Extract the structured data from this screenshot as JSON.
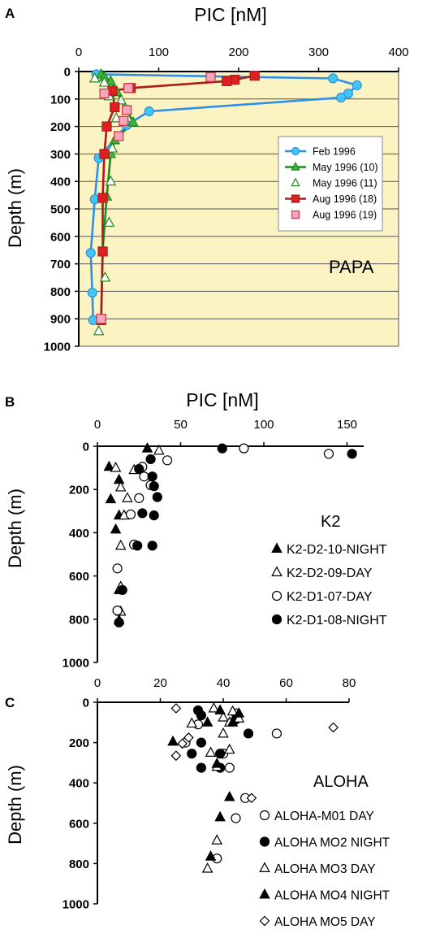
{
  "panels": [
    {
      "letter": "A"
    },
    {
      "letter": "B"
    },
    {
      "letter": "C"
    }
  ],
  "chart_data": [
    {
      "type": "line",
      "panel": "A",
      "xlabel": "PIC [nM]",
      "ylabel": "Depth (m)",
      "xlim": [
        0,
        400
      ],
      "ylim": [
        0,
        1000
      ],
      "y_inverted": true,
      "x_axis_position": "top",
      "x_ticks": [
        0,
        100,
        200,
        300,
        400
      ],
      "y_ticks": [
        0,
        100,
        200,
        300,
        400,
        500,
        600,
        700,
        800,
        900,
        1000
      ],
      "background_color": "#fbf3c2",
      "grid": "horizontal",
      "annotation": "PAPA",
      "legend_position": "right-middle",
      "series": [
        {
          "name": "Feb 1996",
          "marker": "circle",
          "line": true,
          "color": "#2e8fe8",
          "marker_fill": "#42c6f0",
          "points": [
            [
              22,
              10
            ],
            [
              318,
              25
            ],
            [
              348,
              50
            ],
            [
              337,
              80
            ],
            [
              328,
              95
            ],
            [
              88,
              145
            ],
            [
              60,
              195
            ],
            [
              25,
              315
            ],
            [
              20,
              465
            ],
            [
              15,
              660
            ],
            [
              17,
              805
            ],
            [
              18,
              905
            ]
          ]
        },
        {
          "name": "May 1996 (10)",
          "marker": "triangle",
          "line": true,
          "color": "#1e8a1e",
          "marker_fill": "#3fb53f",
          "points": [
            [
              28,
              10
            ],
            [
              32,
              20
            ],
            [
              40,
              35
            ],
            [
              48,
              75
            ],
            [
              60,
              140
            ],
            [
              68,
              185
            ],
            [
              45,
              250
            ],
            [
              40,
              300
            ],
            [
              35,
              455
            ],
            [
              30,
              650
            ],
            [
              28,
              905
            ]
          ]
        },
        {
          "name": "May 1996 (11)",
          "marker": "triangle",
          "line": false,
          "color": "#1e8a1e",
          "marker_fill": "#ffffff",
          "points": [
            [
              20,
              25
            ],
            [
              32,
              40
            ],
            [
              38,
              90
            ],
            [
              53,
              105
            ],
            [
              47,
              170
            ],
            [
              42,
              280
            ],
            [
              40,
              400
            ],
            [
              38,
              550
            ],
            [
              33,
              750
            ],
            [
              25,
              945
            ]
          ]
        },
        {
          "name": "Aug 1996 (18)",
          "marker": "square",
          "line": true,
          "color": "#a81c1c",
          "marker_fill": "#e02020",
          "points": [
            [
              220,
              15
            ],
            [
              195,
              30
            ],
            [
              185,
              35
            ],
            [
              65,
              60
            ],
            [
              42,
              70
            ],
            [
              45,
              130
            ],
            [
              35,
              200
            ],
            [
              32,
              300
            ],
            [
              30,
              460
            ],
            [
              30,
              655
            ],
            [
              28,
              905
            ]
          ]
        },
        {
          "name": "Aug 1996 (19)",
          "marker": "square",
          "line": false,
          "color": "#cc3344",
          "marker_fill": "#f6a6b8",
          "points": [
            [
              165,
              20
            ],
            [
              62,
              60
            ],
            [
              32,
              80
            ],
            [
              60,
              140
            ],
            [
              56,
              180
            ],
            [
              50,
              235
            ],
            [
              28,
              900
            ]
          ]
        }
      ]
    },
    {
      "type": "scatter",
      "panel": "B",
      "xlabel": "PIC [nM]",
      "ylabel": "Depth (m)",
      "xlim": [
        0,
        160
      ],
      "ylim": [
        0,
        1000
      ],
      "y_inverted": true,
      "x_axis_position": "top",
      "x_ticks": [
        0,
        50,
        100,
        150
      ],
      "y_ticks": [
        0,
        200,
        400,
        600,
        800,
        1000
      ],
      "annotation": "K2",
      "legend_position": "right-middle",
      "series": [
        {
          "name": "K2-D2-10-NIGHT",
          "marker": "triangle",
          "filled": true,
          "points": [
            [
              30,
              10
            ],
            [
              7,
              95
            ],
            [
              13,
              155
            ],
            [
              8,
              245
            ],
            [
              13,
              320
            ],
            [
              11,
              385
            ],
            [
              13,
              665
            ],
            [
              13,
              805
            ]
          ]
        },
        {
          "name": "K2-D2-09-DAY",
          "marker": "triangle",
          "filled": false,
          "points": [
            [
              37,
              20
            ],
            [
              11,
              100
            ],
            [
              22,
              110
            ],
            [
              14,
              190
            ],
            [
              18,
              240
            ],
            [
              16,
              320
            ],
            [
              14,
              460
            ],
            [
              14,
              650
            ],
            [
              14,
              765
            ]
          ]
        },
        {
          "name": "K2-D1-07-DAY",
          "marker": "circle",
          "filled": false,
          "points": [
            [
              88,
              10
            ],
            [
              139,
              35
            ],
            [
              42,
              65
            ],
            [
              27,
              95
            ],
            [
              28,
              140
            ],
            [
              32,
              180
            ],
            [
              25,
              240
            ],
            [
              20,
              315
            ],
            [
              22,
              455
            ],
            [
              12,
              565
            ],
            [
              12,
              760
            ]
          ]
        },
        {
          "name": "K2-D1-08-NIGHT",
          "marker": "circle",
          "filled": true,
          "points": [
            [
              75,
              10
            ],
            [
              153,
              35
            ],
            [
              32,
              60
            ],
            [
              25,
              105
            ],
            [
              33,
              140
            ],
            [
              34,
              185
            ],
            [
              36,
              235
            ],
            [
              27,
              310
            ],
            [
              34,
              320
            ],
            [
              24,
              460
            ],
            [
              33,
              460
            ],
            [
              15,
              665
            ],
            [
              13,
              815
            ]
          ]
        }
      ]
    },
    {
      "type": "scatter",
      "panel": "C",
      "xlabel": "",
      "ylabel": "Depth (m)",
      "xlim": [
        0,
        80
      ],
      "ylim": [
        0,
        1000
      ],
      "y_inverted": true,
      "x_axis_position": "top",
      "x_ticks": [
        0,
        20,
        40,
        60,
        80
      ],
      "y_ticks": [
        0,
        200,
        400,
        600,
        800,
        1000
      ],
      "annotation": "ALOHA",
      "legend_position": "right-bottom",
      "series": [
        {
          "name": "ALOHA-M01 DAY",
          "marker": "circle",
          "filled": false,
          "points": [
            [
              44,
              55
            ],
            [
              32,
              110
            ],
            [
              57,
              155
            ],
            [
              28,
              200
            ],
            [
              40,
              255
            ],
            [
              42,
              325
            ],
            [
              47,
              475
            ],
            [
              44,
              575
            ],
            [
              38,
              775
            ]
          ]
        },
        {
          "name": "ALOHA MO2 NIGHT",
          "marker": "circle",
          "filled": true,
          "points": [
            [
              32,
              40
            ],
            [
              33,
              65
            ],
            [
              44,
              85
            ],
            [
              48,
              155
            ],
            [
              33,
              200
            ],
            [
              30,
              255
            ],
            [
              39,
              255
            ],
            [
              33,
              325
            ],
            [
              39,
              325
            ]
          ]
        },
        {
          "name": "ALOHA MO3 DAY",
          "marker": "triangle",
          "filled": false,
          "points": [
            [
              37,
              30
            ],
            [
              43,
              45
            ],
            [
              40,
              75
            ],
            [
              45,
              80
            ],
            [
              30,
              105
            ],
            [
              42,
              100
            ],
            [
              40,
              155
            ],
            [
              42,
              235
            ],
            [
              36,
              250
            ],
            [
              38,
              320
            ],
            [
              38,
              685
            ],
            [
              35,
              825
            ]
          ]
        },
        {
          "name": "ALOHA MO4 NIGHT",
          "marker": "triangle",
          "filled": true,
          "points": [
            [
              39,
              40
            ],
            [
              45,
              55
            ],
            [
              35,
              100
            ],
            [
              43,
              100
            ],
            [
              24,
              195
            ],
            [
              38,
              305
            ],
            [
              42,
              470
            ],
            [
              39,
              570
            ],
            [
              36,
              765
            ]
          ]
        },
        {
          "name": "ALOHA MO5 DAY",
          "marker": "diamond",
          "filled": false,
          "points": [
            [
              25,
              30
            ],
            [
              29,
              175
            ],
            [
              27,
              205
            ],
            [
              25,
              265
            ],
            [
              75,
              125
            ],
            [
              49,
              475
            ]
          ]
        }
      ]
    }
  ]
}
